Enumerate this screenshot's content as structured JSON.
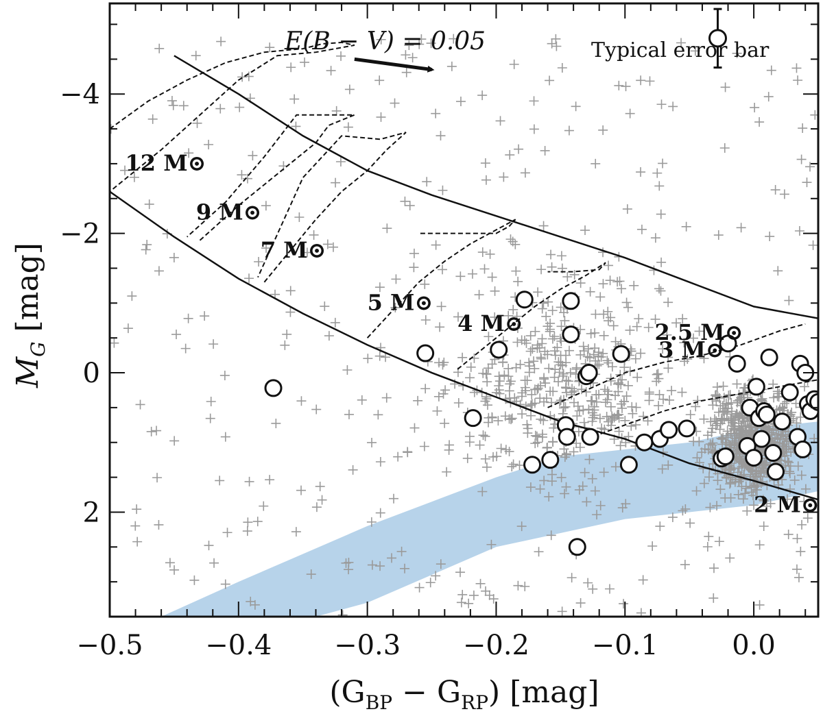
{
  "chart_data": {
    "type": "scatter",
    "xlabel_main": "(G",
    "xlabel_sub1": "BP",
    "xlabel_mid": " − G",
    "xlabel_sub2": "RP",
    "xlabel_unit": ") [mag]",
    "ylabel_main": "M",
    "ylabel_sub": "G",
    "ylabel_unit": " [mag]",
    "xlim": [
      -0.5,
      0.05
    ],
    "ylim": [
      3.5,
      -5.3
    ],
    "x_ticks": [
      -0.5,
      -0.4,
      -0.3,
      -0.2,
      -0.1,
      0.0
    ],
    "x_tick_labels": [
      "−0.5",
      "−0.4",
      "−0.3",
      "−0.2",
      "−0.1",
      "0.0"
    ],
    "y_ticks": [
      2,
      0,
      -2,
      -4
    ],
    "y_tick_labels": [
      "2",
      "0",
      "−2",
      "−4"
    ],
    "reddening_label": "E(B − V) = 0.05",
    "reddening_vector": {
      "from": [
        -0.31,
        -4.5
      ],
      "to": [
        -0.25,
        -4.35
      ]
    },
    "error_bar_label": "Typical error bar",
    "error_bar": {
      "x": -0.028,
      "y": -4.8,
      "yerr": 0.42
    },
    "colors": {
      "circles": "#111111",
      "crosses": "#9a9a9a",
      "band": "#b7d3ea",
      "lines": "#111111"
    },
    "mass_labels": [
      {
        "text": "12",
        "sun": "M⊙",
        "x": -0.488,
        "y": -2.9
      },
      {
        "text": "9",
        "sun": "M⊙",
        "x": -0.433,
        "y": -2.2
      },
      {
        "text": "7",
        "sun": "M⊙",
        "x": -0.383,
        "y": -1.65
      },
      {
        "text": "5",
        "sun": "M⊙",
        "x": -0.3,
        "y": -0.9
      },
      {
        "text": "4",
        "sun": "M⊙",
        "x": -0.23,
        "y": -0.6
      },
      {
        "text": "3",
        "sun": "M⊙",
        "x": -0.074,
        "y": -0.22
      },
      {
        "text": "2.5",
        "sun": "M⊙",
        "x": -0.077,
        "y": -0.47
      },
      {
        "text": "2",
        "sun": "M⊙",
        "x": 0.0,
        "y": 2.0
      }
    ],
    "zams": {
      "x": [
        -0.5,
        -0.45,
        -0.4,
        -0.35,
        -0.3,
        -0.25,
        -0.2,
        -0.15,
        -0.1,
        -0.05,
        0.0,
        0.05
      ],
      "y": [
        -2.6,
        -1.95,
        -1.35,
        -0.85,
        -0.4,
        0.0,
        0.35,
        0.7,
        0.95,
        1.3,
        1.55,
        1.82
      ]
    },
    "tams": {
      "x": [
        -0.45,
        -0.4,
        -0.35,
        -0.3,
        -0.25,
        -0.2,
        -0.15,
        -0.1,
        -0.05,
        0.0,
        0.05
      ],
      "y": [
        -4.55,
        -4.0,
        -3.4,
        -2.9,
        -2.55,
        -2.25,
        -1.95,
        -1.65,
        -1.3,
        -0.95,
        -0.78
      ]
    },
    "tracks": [
      {
        "name": "12",
        "x": [
          -0.5,
          -0.47,
          -0.44,
          -0.41,
          -0.38,
          -0.35,
          -0.335,
          -0.32,
          -0.31,
          -0.34,
          -0.37,
          -0.37,
          -0.4,
          -0.43,
          -0.46,
          -0.49,
          -0.5
        ],
        "y": [
          -3.5,
          -3.9,
          -4.2,
          -4.45,
          -4.6,
          -4.65,
          -4.72,
          -4.74,
          -4.7,
          -4.6,
          -4.55,
          -4.55,
          -4.2,
          -3.7,
          -3.2,
          -2.75,
          -2.6
        ]
      },
      {
        "name": "9",
        "x": [
          -0.43,
          -0.4,
          -0.37,
          -0.34,
          -0.33,
          -0.31,
          -0.33,
          -0.355,
          -0.38,
          -0.41,
          -0.44
        ],
        "y": [
          -1.9,
          -2.4,
          -2.85,
          -3.3,
          -3.55,
          -3.7,
          -3.7,
          -3.7,
          -3.1,
          -2.45,
          -1.95
        ]
      },
      {
        "name": "7",
        "x": [
          -0.38,
          -0.36,
          -0.34,
          -0.32,
          -0.3,
          -0.285,
          -0.27,
          -0.29,
          -0.32,
          -0.35,
          -0.385
        ],
        "y": [
          -1.3,
          -1.75,
          -2.2,
          -2.6,
          -2.9,
          -3.2,
          -3.45,
          -3.35,
          -3.4,
          -2.8,
          -1.37
        ]
      },
      {
        "name": "5",
        "x": [
          -0.3,
          -0.28,
          -0.26,
          -0.24,
          -0.22,
          -0.2,
          -0.185,
          -0.19,
          -0.2,
          -0.23,
          -0.26
        ],
        "y": [
          -0.5,
          -0.9,
          -1.3,
          -1.6,
          -1.85,
          -2.05,
          -2.2,
          -2.1,
          -2.0,
          -2.0,
          -2.0
        ]
      },
      {
        "name": "4",
        "x": [
          -0.23,
          -0.21,
          -0.19,
          -0.17,
          -0.15,
          -0.13,
          -0.115,
          -0.12,
          -0.14,
          -0.16
        ],
        "y": [
          -0.05,
          -0.35,
          -0.65,
          -0.95,
          -1.2,
          -1.4,
          -1.58,
          -1.48,
          -1.45,
          -1.45
        ]
      },
      {
        "name": "3",
        "x": [
          -0.16,
          -0.13,
          -0.1,
          -0.07,
          -0.04,
          -0.01,
          0.02,
          0.04
        ],
        "y": [
          0.5,
          0.25,
          0.0,
          -0.15,
          -0.25,
          -0.4,
          -0.6,
          -0.7
        ]
      },
      {
        "name": "2.5",
        "x": [
          -0.13,
          -0.1,
          -0.07,
          -0.04,
          -0.01,
          0.02,
          0.05
        ],
        "y": [
          0.95,
          0.75,
          0.55,
          0.4,
          0.3,
          0.2,
          0.1
        ]
      }
    ],
    "band": {
      "upper_x": [
        -0.46,
        -0.4,
        -0.35,
        -0.3,
        -0.25,
        -0.2,
        -0.15,
        -0.1,
        -0.05,
        0.0,
        0.05
      ],
      "upper_y": [
        3.5,
        3.0,
        2.6,
        2.2,
        1.85,
        1.5,
        1.2,
        1.1,
        1.0,
        0.8,
        0.7
      ],
      "lower_x": [
        0.05,
        0.0,
        -0.05,
        -0.1,
        -0.15,
        -0.2,
        -0.25,
        -0.3,
        -0.34
      ],
      "lower_y": [
        1.7,
        1.9,
        2.0,
        2.1,
        2.3,
        2.5,
        2.9,
        3.3,
        3.5
      ]
    },
    "circles": {
      "x": [
        -0.373,
        -0.255,
        -0.218,
        -0.198,
        -0.178,
        -0.172,
        -0.158,
        -0.146,
        -0.145,
        -0.142,
        -0.142,
        -0.137,
        -0.13,
        -0.128,
        -0.127,
        -0.103,
        -0.097,
        -0.085,
        -0.073,
        -0.066,
        -0.052,
        -0.025,
        -0.022,
        -0.02,
        -0.013,
        -0.005,
        -0.003,
        0.0,
        0.002,
        0.004,
        0.006,
        0.008,
        0.01,
        0.012,
        0.015,
        0.017,
        0.022,
        0.028,
        0.034,
        0.036,
        0.038,
        0.04,
        0.042,
        0.044,
        0.047,
        0.05
      ],
      "y": [
        0.22,
        -0.28,
        0.65,
        -0.33,
        -1.05,
        1.32,
        1.25,
        0.75,
        0.92,
        -1.03,
        -0.55,
        2.5,
        0.05,
        0.0,
        0.92,
        -0.27,
        1.32,
        1.0,
        0.95,
        0.82,
        0.8,
        1.23,
        1.2,
        -0.42,
        -0.13,
        1.05,
        0.5,
        1.22,
        0.2,
        0.65,
        0.95,
        0.55,
        0.6,
        -0.22,
        1.15,
        1.42,
        0.7,
        0.28,
        0.92,
        -0.13,
        1.1,
        0.0,
        0.45,
        0.55,
        0.38,
        0.42
      ]
    },
    "crosses": {
      "count": 1400,
      "seed": 7
    }
  }
}
